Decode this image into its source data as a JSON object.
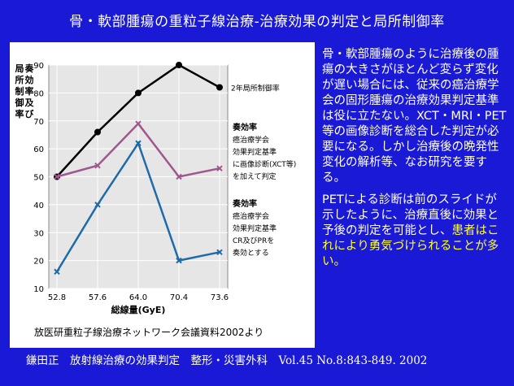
{
  "slide": {
    "title": "骨・軟部腫瘍の重粒子線治療-治療効果の判定と局所制御率",
    "source_note": "放医研重粒子線治療ネットワーク会議資料2002より",
    "citation": "鎌田正　放射線治療の効果判定　整形・災害外科　Vol.45 No.8:843-849. 2002",
    "paragraph1": "骨・軟部腫瘍のように治療後の腫瘍の大きさがほとんど変らず変化が遅い場合には、従来の癌治療学会の固形腫瘍の治療効果判定基準は役に立たない。XCT・MRI・PET等の画像診断を総合した判定が必要になる。しかし治療後の晩発性変化の解析等、なお研究を要する。",
    "paragraph2_part1": "PETによる診断は前のスライドが示したように、治療直後に効果と予後の判定を可能とし、",
    "paragraph2_highlight": "患者はこれにより勇気づけられることが多い。",
    "colors": {
      "background": "#1a1ad6",
      "highlight": "#ffff33"
    }
  },
  "chart_data": {
    "type": "line",
    "x": [
      "52.8",
      "57.6",
      "64.0",
      "70.4",
      "73.6"
    ],
    "xlabel": "総線量(GyE)",
    "ylabel": "奏効率及び局所制御率",
    "ylim": [
      10,
      90
    ],
    "yticks": [
      10,
      20,
      30,
      40,
      50,
      60,
      70,
      80,
      90
    ],
    "grid": true,
    "series": [
      {
        "key": "local",
        "values": [
          50,
          66,
          80,
          90,
          82
        ],
        "color": "#000000",
        "marker": "circle"
      },
      {
        "key": "img",
        "values": [
          50,
          54,
          69,
          50,
          53
        ],
        "color": "#a0578f",
        "marker": "x"
      },
      {
        "key": "cr",
        "values": [
          16,
          40,
          62,
          20,
          23
        ],
        "color": "#1f6aa8",
        "marker": "x"
      }
    ],
    "annotations": {
      "local": [
        "2年局所制御率"
      ],
      "img": [
        "奏効率",
        "癌治療学会",
        "効果判定基準",
        "に画像診断(XCT等)",
        "を加えて判定"
      ],
      "cr": [
        "奏効率",
        "癌治療学会",
        "効果判定基準",
        "CR及びPRを",
        "奏効とする"
      ]
    }
  }
}
